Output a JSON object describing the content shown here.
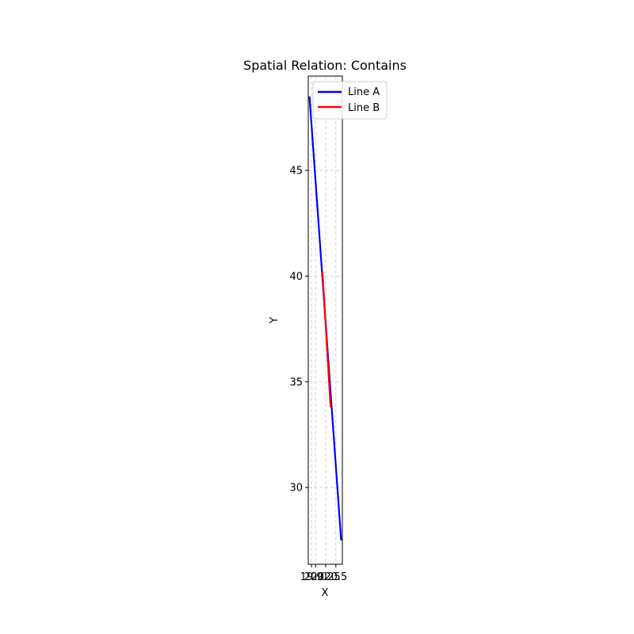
{
  "chart_data": {
    "type": "line",
    "title": "Spatial Relation: Contains",
    "xlabel": "X",
    "ylabel": "Y",
    "xlim": [
      19.82,
      20.66
    ],
    "ylim": [
      26.37,
      49.46
    ],
    "xticks": [
      {
        "value": 19.9,
        "label": "19.9"
      },
      {
        "value": 20.0,
        "label": "20.0"
      },
      {
        "value": 20.25,
        "label": "20.25"
      },
      {
        "value": 20.5,
        "label": "20.5"
      }
    ],
    "yticks": [
      {
        "value": 30,
        "label": "30"
      },
      {
        "value": 35,
        "label": "35"
      },
      {
        "value": 40,
        "label": "40"
      },
      {
        "value": 45,
        "label": "45"
      }
    ],
    "grid": true,
    "legend_position": "upper right",
    "series": [
      {
        "name": "Line A",
        "color": "#0000ff",
        "x": [
          19.85,
          20.63
        ],
        "y": [
          48.5,
          27.5
        ]
      },
      {
        "name": "Line B",
        "color": "#ff0000",
        "x": [
          20.17,
          20.37
        ],
        "y": [
          40.2,
          33.8
        ]
      }
    ]
  }
}
